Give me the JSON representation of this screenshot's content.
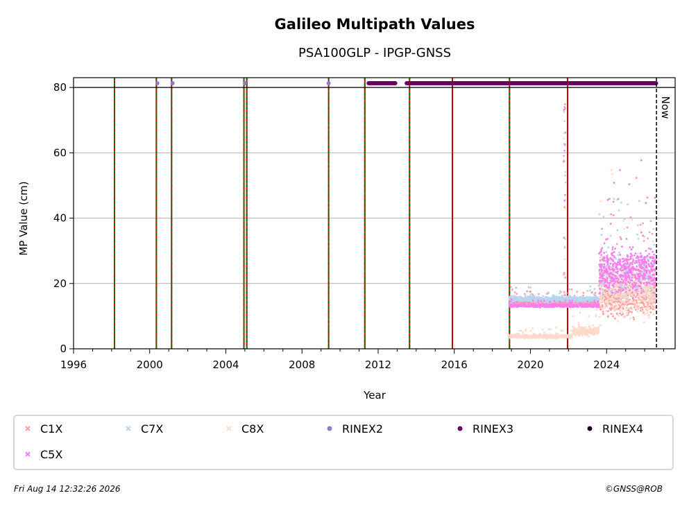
{
  "chart_data": {
    "type": "scatter",
    "title": "Galileo Multipath Values",
    "subtitle": "PSA100GLP - IPGP-GNSS",
    "xlabel": "Year",
    "ylabel": "MP Value (cm)",
    "xlim": [
      1996,
      2027.6
    ],
    "ylim": [
      0,
      83
    ],
    "x_ticks": [
      "1996",
      "2000",
      "2004",
      "2008",
      "2012",
      "2016",
      "2020",
      "2024"
    ],
    "y_ticks": [
      "0",
      "20",
      "40",
      "60",
      "80"
    ],
    "grid": "horizontal",
    "now_label": "Now",
    "now_year": 2026.62,
    "threshold_line": 80,
    "red_vlines": [
      1998.15,
      2000.35,
      2001.15,
      2004.95,
      2005.1,
      2009.4,
      2011.3,
      2013.65,
      2015.9,
      2018.9,
      2021.95
    ],
    "green_dotted_vlines": [
      1998.15,
      2000.35,
      2001.15,
      2004.95,
      2005.1,
      2009.4,
      2011.3,
      2013.65,
      2018.9
    ],
    "rinex_markers": [
      {
        "series": "RINEX2",
        "x": [
          2000.4,
          2001.2,
          2005.0,
          2009.4
        ],
        "y": 81.3
      },
      {
        "series": "RINEX3",
        "segments": [
          [
            2011.5,
            2012.9
          ],
          [
            2013.5,
            2026.6
          ]
        ],
        "y": 81.3
      }
    ],
    "series": [
      {
        "name": "C1X",
        "color": "#ff9e9e",
        "segments": [
          {
            "x0": 2018.9,
            "x1": 2023.6,
            "center": 14.6,
            "spread": 1.2
          },
          {
            "x0": 2023.6,
            "x1": 2026.6,
            "center": 16.0,
            "spread": 8.0
          }
        ]
      },
      {
        "name": "C7X",
        "color": "#b8d4ee",
        "segments": [
          {
            "x0": 2018.9,
            "x1": 2023.6,
            "center": 15.2,
            "spread": 1.2
          },
          {
            "x0": 2023.6,
            "x1": 2026.6,
            "center": 22.0,
            "spread": 9.0
          }
        ]
      },
      {
        "name": "C8X",
        "color": "#ffd9cc",
        "segments": [
          {
            "x0": 2018.9,
            "x1": 2022.2,
            "center": 3.8,
            "spread": 0.8
          },
          {
            "x0": 2022.2,
            "x1": 2023.6,
            "center": 5.5,
            "spread": 2.0
          },
          {
            "x0": 2023.6,
            "x1": 2026.6,
            "center": 18.0,
            "spread": 12.0
          }
        ]
      },
      {
        "name": "C5X",
        "color": "#ff7cf0",
        "segments": [
          {
            "x0": 2018.9,
            "x1": 2023.6,
            "center": 13.2,
            "spread": 0.6
          },
          {
            "x0": 2023.6,
            "x1": 2026.6,
            "center": 24.0,
            "spread": 10.0
          }
        ]
      }
    ],
    "spike": {
      "x": 2021.8,
      "y_top": 75,
      "y_bottom": 15
    },
    "legend": {
      "placement": "bottom",
      "entries": [
        {
          "label": "C1X",
          "color": "#ff9e9e",
          "marker": "x"
        },
        {
          "label": "C7X",
          "color": "#b8d4ee",
          "marker": "x"
        },
        {
          "label": "C8X",
          "color": "#ffd9cc",
          "marker": "x"
        },
        {
          "label": "RINEX2",
          "color": "#8c7cc8",
          "marker": "dot"
        },
        {
          "label": "RINEX3",
          "color": "#6a0060",
          "marker": "dot"
        },
        {
          "label": "RINEX4",
          "color": "#1a0020",
          "marker": "dot"
        },
        {
          "label": "C5X",
          "color": "#ff7cf0",
          "marker": "x"
        }
      ]
    }
  },
  "footer": {
    "timestamp": "Fri Aug 14 12:32:26 2026",
    "credit": "©GNSS@ROB"
  }
}
